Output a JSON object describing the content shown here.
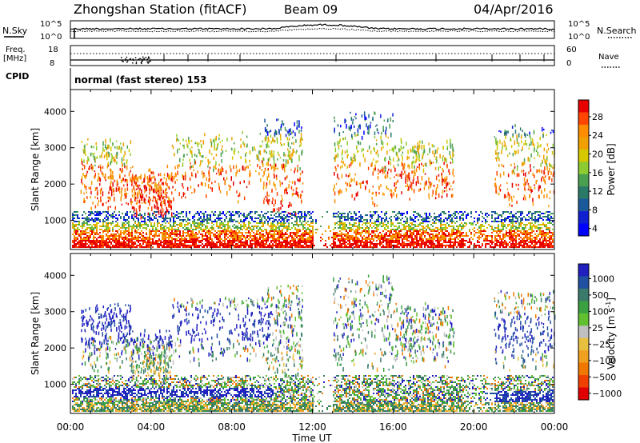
{
  "header": {
    "station": "Zhongshan Station (fitACF)",
    "beam": "Beam 09",
    "date": "04/Apr/2016"
  },
  "top_panels": {
    "nsky_label": "N.Sky",
    "nsky_ticks": [
      "10^5",
      "10^0"
    ],
    "nsearch_label": "N.Search",
    "nsearch_ticks": [
      "10^5",
      "10^0"
    ],
    "freq_label_1": "Freq.",
    "freq_label_2": "[MHz]",
    "freq_ticks": [
      "18",
      "8"
    ],
    "nave_label": "Nave",
    "nave_ticks": [
      "60",
      "0"
    ],
    "cpid_label": "CPID",
    "cpid_text": "normal (fast stereo) 153"
  },
  "chart_data": [
    {
      "type": "heatmap",
      "name": "power-panel",
      "ylabel": "Slant Range [km]",
      "y_ticks": [
        1000,
        2000,
        3000,
        4000
      ],
      "ylim": [
        200,
        4600
      ],
      "xlim": [
        0,
        24
      ],
      "colorbar": {
        "label": "Power [dB]",
        "tick_labels": [
          "28",
          "24",
          "20",
          "16",
          "12",
          "8",
          "4"
        ],
        "colors": [
          "#e60000",
          "#ff4500",
          "#ff8c00",
          "#f0a000",
          "#d6c800",
          "#8ccc30",
          "#4aa050",
          "#2a7a6a",
          "#1a5a9a",
          "#1020d0",
          "#0000ff"
        ]
      }
    },
    {
      "type": "heatmap",
      "name": "velocity-panel",
      "ylabel": "Slant Range [km]",
      "y_ticks": [
        1000,
        2000,
        3000,
        4000
      ],
      "ylim": [
        200,
        4600
      ],
      "xlim": [
        0,
        24
      ],
      "xlabel": "Time UT",
      "x_ticks": [
        "00:00",
        "04:00",
        "08:00",
        "12:00",
        "16:00",
        "20:00",
        "00:00"
      ],
      "colorbar": {
        "label": "Velocity [m s",
        "label_sup": "-1",
        "label_end": "]",
        "tick_labels": [
          "1000",
          "500",
          "100",
          "25",
          "−25",
          "−100",
          "−500",
          "−1000"
        ],
        "colors": [
          "#2020c0",
          "#2050a0",
          "#3a7a6a",
          "#3aa040",
          "#60c030",
          "#c0c0c0",
          "#e8c040",
          "#f0a020",
          "#f07800",
          "#f04000",
          "#e00000"
        ]
      }
    }
  ]
}
